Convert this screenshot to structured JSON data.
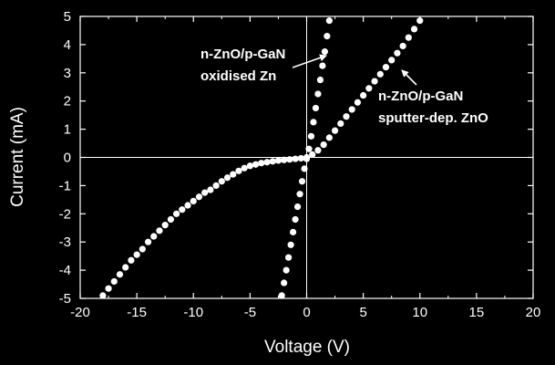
{
  "chart_data": {
    "type": "scatter",
    "xlabel": "Voltage (V)",
    "ylabel": "Current (mA)",
    "xlim": [
      -20,
      20
    ],
    "ylim": [
      -5,
      5
    ],
    "x_ticks": [
      -20,
      -15,
      -10,
      -5,
      0,
      5,
      10,
      15,
      20
    ],
    "y_ticks": [
      -5,
      -4,
      -3,
      -2,
      -1,
      0,
      1,
      2,
      3,
      4,
      5
    ],
    "zero_lines": true,
    "grid": false,
    "colors": {
      "background": "#000000",
      "foreground": "#ffffff",
      "markers": "#ffffff"
    },
    "series": [
      {
        "name": "n-ZnO/p-GaN oxidised Zn",
        "x": [
          -2.2,
          -2.0,
          -1.8,
          -1.6,
          -1.4,
          -1.2,
          -1.0,
          -0.8,
          -0.6,
          -0.4,
          -0.2,
          0.0,
          0.2,
          0.4,
          0.6,
          0.8,
          1.0,
          1.2,
          1.4,
          1.6,
          1.8,
          2.0
        ],
        "y": [
          -4.9,
          -4.45,
          -4.0,
          -3.55,
          -3.1,
          -2.65,
          -2.2,
          -1.75,
          -1.3,
          -0.85,
          -0.4,
          -0.05,
          0.3,
          0.75,
          1.25,
          1.75,
          2.25,
          2.75,
          3.25,
          3.75,
          4.3,
          4.85
        ]
      },
      {
        "name": "n-ZnO/p-GaN sputter-dep. ZnO",
        "x": [
          -18.0,
          -17.5,
          -17.0,
          -16.5,
          -16.0,
          -15.5,
          -15.0,
          -14.5,
          -14.0,
          -13.5,
          -13.0,
          -12.5,
          -12.0,
          -11.5,
          -11.0,
          -10.5,
          -10.0,
          -9.5,
          -9.0,
          -8.5,
          -8.0,
          -7.5,
          -7.0,
          -6.5,
          -6.0,
          -5.5,
          -5.0,
          -4.5,
          -4.0,
          -3.5,
          -3.0,
          -2.5,
          -2.0,
          -1.5,
          -1.0,
          -0.5,
          0.0,
          0.5,
          1.0,
          1.5,
          2.0,
          2.5,
          3.0,
          3.5,
          4.0,
          4.5,
          5.0,
          5.5,
          6.0,
          6.5,
          7.0,
          7.5,
          8.0,
          8.5,
          9.0,
          9.5,
          10.0
        ],
        "y": [
          -4.9,
          -4.65,
          -4.4,
          -4.15,
          -3.9,
          -3.65,
          -3.45,
          -3.25,
          -3.0,
          -2.8,
          -2.6,
          -2.4,
          -2.2,
          -2.0,
          -1.85,
          -1.7,
          -1.55,
          -1.4,
          -1.25,
          -1.15,
          -1.0,
          -0.85,
          -0.72,
          -0.6,
          -0.48,
          -0.38,
          -0.3,
          -0.25,
          -0.2,
          -0.17,
          -0.14,
          -0.11,
          -0.09,
          -0.07,
          -0.05,
          -0.03,
          0.0,
          0.1,
          0.25,
          0.45,
          0.7,
          0.95,
          1.2,
          1.45,
          1.7,
          1.95,
          2.2,
          2.45,
          2.7,
          2.95,
          3.2,
          3.45,
          3.7,
          3.95,
          4.25,
          4.55,
          4.85
        ]
      }
    ],
    "annotations": [
      {
        "id": "oxidised",
        "lines": [
          "n-ZnO/p-GaN",
          "oxidised Zn"
        ]
      },
      {
        "id": "sputter",
        "lines": [
          "n-ZnO/p-GaN",
          "sputter-dep. ZnO"
        ]
      }
    ]
  }
}
